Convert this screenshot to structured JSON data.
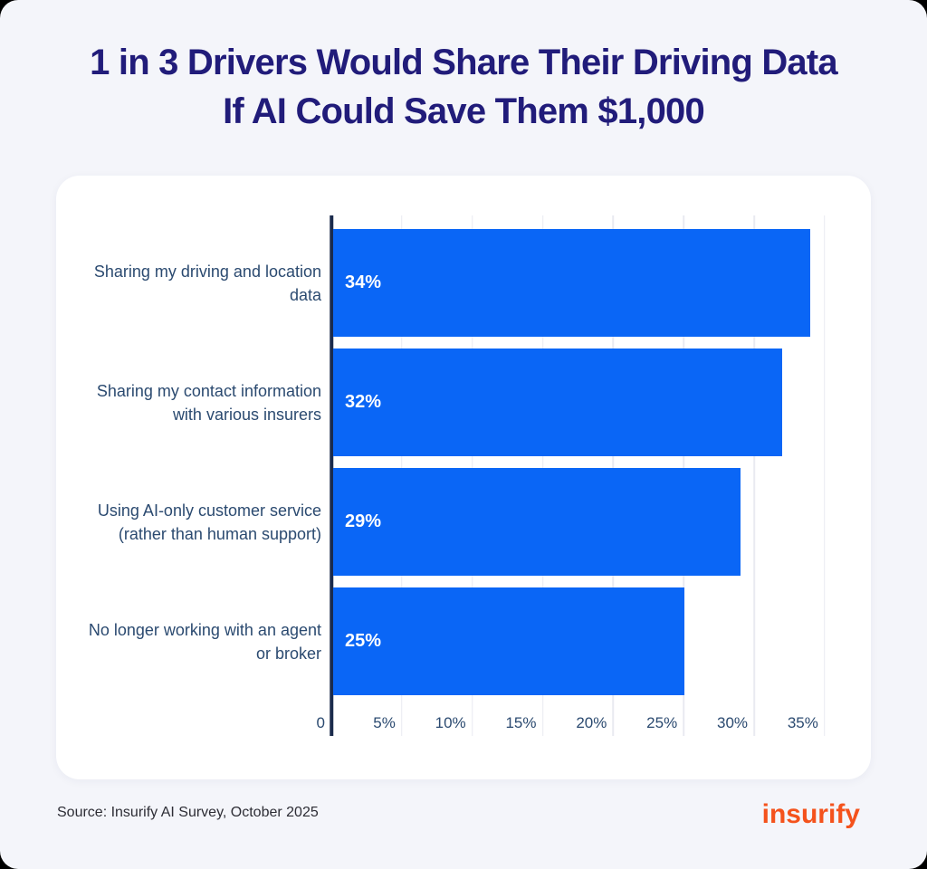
{
  "page": {
    "background_color": "#F4F5FA",
    "source_note": "Source: Insurify AI Survey, October 2025",
    "brand_logo_text": "insurify",
    "brand_color": "#F4521C"
  },
  "chart_data": {
    "type": "bar",
    "orientation": "horizontal",
    "title": "1 in 3 Drivers Would Share Their Driving Data If AI Could Save Them $1,000",
    "title_lines": [
      "1 in 3 Drivers Would Share Their Driving Data",
      "If AI Could Save Them $1,000"
    ],
    "categories": [
      "Sharing my driving and location data",
      "Sharing my contact information with various insurers",
      "Using AI-only customer service (rather than human support)",
      "No longer working with an agent or broker"
    ],
    "values": [
      34,
      32,
      29,
      25
    ],
    "value_labels": [
      "34%",
      "32%",
      "29%",
      "25%"
    ],
    "xlabel": "",
    "ylabel": "",
    "xlim": [
      0,
      37
    ],
    "tick_values": [
      0,
      5,
      10,
      15,
      20,
      25,
      30,
      35
    ],
    "tick_labels": [
      "0",
      "5%",
      "10%",
      "15%",
      "20%",
      "25%",
      "30%",
      "35%"
    ],
    "grid": "vertical",
    "legend": "none",
    "bar_color": "#0A66F6",
    "value_label_color": "#FFFFFF",
    "category_label_color": "#2B4A70",
    "axis_line_color": "#1B2B4C",
    "gridline_color": "#E9EAF1",
    "title_color": "#211C7A"
  }
}
